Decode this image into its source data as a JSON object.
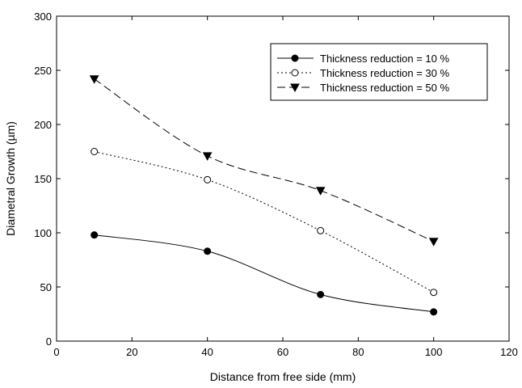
{
  "chart_data": {
    "type": "line",
    "title": "",
    "xlabel": "Distance from free side (mm)",
    "ylabel": "Diametral Growth (µm)",
    "xlim": [
      0,
      120
    ],
    "ylim": [
      0,
      300
    ],
    "xticks": [
      0,
      20,
      40,
      60,
      80,
      100,
      120
    ],
    "yticks": [
      0,
      50,
      100,
      150,
      200,
      250,
      300
    ],
    "grid": false,
    "legend_position": "top-right",
    "series": [
      {
        "name": "Thickness reduction = 10 %",
        "marker": "filled-circle",
        "line_style": "solid",
        "x": [
          10,
          40,
          70,
          100
        ],
        "y": [
          98,
          83,
          43,
          27
        ]
      },
      {
        "name": "Thickness reduction = 30 %",
        "marker": "open-circle",
        "line_style": "dotted",
        "x": [
          10,
          40,
          70,
          100
        ],
        "y": [
          175,
          149,
          102,
          45
        ]
      },
      {
        "name": "Thickness reduction = 50 %",
        "marker": "filled-triangle-down",
        "line_style": "dashed",
        "x": [
          10,
          40,
          70,
          100
        ],
        "y": [
          242,
          171,
          139,
          92
        ]
      }
    ]
  }
}
